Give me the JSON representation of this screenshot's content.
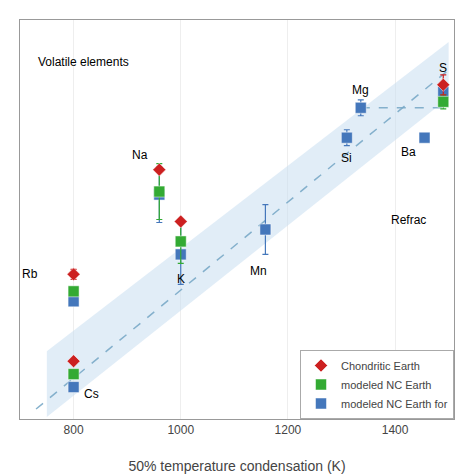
{
  "chart_data": {
    "type": "scatter",
    "xlabel": "50% temperature condensation (K)",
    "xlim": [
      700,
      1510
    ],
    "ylim": [
      -2.4,
      1.6
    ],
    "xticks": [
      800,
      1000,
      1200,
      1400
    ],
    "yticks": [],
    "tick_labels": "x",
    "grid": true,
    "legend": "lower right",
    "series": [
      {
        "type": "area",
        "color": "#c8dff0",
        "x": [
          750,
          1500,
          1500,
          750
        ],
        "values": [
          -2.38,
          0.82,
          1.38,
          -1.72
        ]
      },
      {
        "type": "line",
        "line_style": "dashed",
        "color": "#7aaac8",
        "x": [
          730,
          1500
        ],
        "values": [
          -2.3,
          1.1
        ]
      },
      {
        "type": "line",
        "line_style": "dashed",
        "color": "#7aaac8",
        "x": [
          1336,
          1500
        ],
        "values": [
          0.72,
          0.72
        ]
      },
      {
        "name": "Chondritic Earth",
        "type": "scatter",
        "marker": "diamond",
        "color": "#cc2020",
        "x": [
          800,
          800,
          960,
          1000,
          1490
        ],
        "values": [
          -1.82,
          -0.95,
          0.1,
          -0.42,
          0.95
        ],
        "errors": [
          0,
          0.05,
          0,
          0,
          0.1
        ]
      },
      {
        "name": "modeled NC Earth",
        "type": "scatter",
        "marker": "square",
        "color": "#33aa33",
        "x": [
          800,
          800,
          960,
          1000,
          1490
        ],
        "values": [
          -1.95,
          -1.12,
          -0.12,
          -0.62,
          0.78
        ],
        "errors": [
          0,
          0,
          0.28,
          0.22,
          0.07
        ]
      },
      {
        "name": "modeled NC Earth for",
        "type": "scatter",
        "marker": "square",
        "color": "#4477bb",
        "x": [
          800,
          800,
          960,
          1000,
          1158,
          1310,
          1336,
          1455,
          1490
        ],
        "values": [
          -2.08,
          -1.22,
          -0.15,
          -0.75,
          -0.5,
          0.42,
          0.72,
          0.42,
          0.88
        ],
        "errors": [
          0,
          0,
          0.28,
          0.3,
          0.25,
          0.08,
          0.08,
          0,
          0.07
        ]
      }
    ],
    "annotations": [
      {
        "text": "Cs",
        "x": 815,
        "y": -2.15,
        "align": "left"
      },
      {
        "text": "Rb",
        "x": 700,
        "y": -0.95,
        "align": "left"
      },
      {
        "text": "Na",
        "x": 905,
        "y": 0.25,
        "align": "left"
      },
      {
        "text": "K",
        "x": 1000,
        "y": -1.0,
        "align": "center"
      },
      {
        "text": "Mn",
        "x": 1145,
        "y": -0.92,
        "align": "center"
      },
      {
        "text": "Si",
        "x": 1310,
        "y": 0.22,
        "align": "center"
      },
      {
        "text": "Mg",
        "x": 1315,
        "y": 0.9,
        "align": "left"
      },
      {
        "text": "Ba",
        "x": 1408,
        "y": 0.28,
        "align": "left"
      },
      {
        "text": "S",
        "x": 1478,
        "y": 1.12,
        "align": "left"
      },
      {
        "text": "Volatile elements",
        "x": 730,
        "y": 1.18,
        "align": "left"
      },
      {
        "text": "Refrac",
        "x": 1388,
        "y": -0.4,
        "align": "left"
      }
    ]
  }
}
